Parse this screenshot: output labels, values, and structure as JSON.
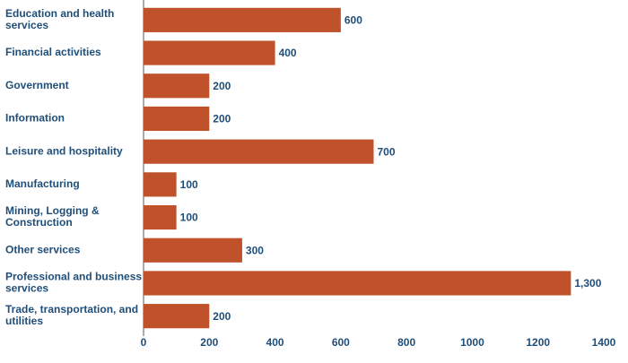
{
  "chart_data": {
    "type": "bar",
    "orientation": "horizontal",
    "categories": [
      "Education and health services",
      "Financial activities",
      "Government",
      "Information",
      "Leisure and hospitality",
      "Manufacturing",
      "Mining, Logging & Construction",
      "Other services",
      "Professional and business services",
      "Trade, transportation, and utilities"
    ],
    "values": [
      600,
      400,
      200,
      200,
      700,
      100,
      100,
      300,
      1300,
      200
    ],
    "value_labels": [
      "600",
      "400",
      "200",
      "200",
      "700",
      "100",
      "100",
      "300",
      "1,300",
      "200"
    ],
    "color": "#c0522b",
    "xlim": [
      0,
      1400
    ],
    "xticks": [
      0,
      200,
      400,
      600,
      800,
      1000,
      1200,
      1400
    ]
  }
}
